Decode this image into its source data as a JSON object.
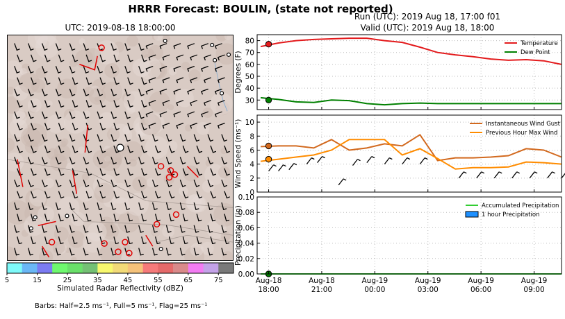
{
  "header": {
    "title": "HRRR Forecast: BOULIN, (state not reported)",
    "run": "Run (UTC): 2019 Aug 18, 17:00 f01",
    "valid": "Valid (UTC): 2019 Aug 18, 18:00"
  },
  "map": {
    "title": "UTC: 2019-08-18 18:00:00",
    "background_color": "#d9cbc4",
    "colorbar": {
      "label": "Simulated Radar Reflectivity (dBZ)",
      "ticks": [
        "5",
        "15",
        "25",
        "35",
        "45",
        "55",
        "65",
        "75"
      ],
      "colors": [
        "#7ef9f9",
        "#6ab7f5",
        "#7b7bf2",
        "#6ef86e",
        "#6adf6a",
        "#74c074",
        "#f8f86e",
        "#f2da77",
        "#f5c27a",
        "#f57a7a",
        "#e56a6a",
        "#d98a8a",
        "#f37cf3",
        "#c4a2e8",
        "#7a7a7a"
      ]
    },
    "barbs_note": "Barbs: Half=2.5 ms⁻¹, Full=5 ms⁻¹, Flag=25 ms⁻¹"
  },
  "chart_data": [
    {
      "type": "line",
      "ylabel": "Degrees (F)",
      "ylim": [
        22,
        85
      ],
      "yticks": [
        30,
        40,
        50,
        60,
        70,
        80
      ],
      "grid": true,
      "legend_position": "top-right",
      "series": [
        {
          "name": "Temperature",
          "color": "#e31a1c",
          "x": [
            0,
            1,
            2,
            3,
            4,
            5,
            6,
            7,
            8,
            9,
            10,
            11,
            12,
            13,
            14,
            15,
            16,
            17
          ],
          "values": [
            75,
            78,
            80,
            81,
            81.5,
            82,
            82,
            80,
            78.5,
            74.5,
            70,
            68,
            66.5,
            64.5,
            63.5,
            64,
            63,
            60
          ]
        },
        {
          "name": "Dew Point",
          "color": "#008000",
          "x": [
            0,
            1,
            2,
            3,
            4,
            5,
            6,
            7,
            8,
            9,
            10,
            11,
            12,
            13,
            14,
            15,
            16,
            17
          ],
          "values": [
            32,
            30.5,
            28.5,
            28,
            30,
            29.5,
            27,
            26,
            27,
            27.5,
            27,
            27,
            27,
            27,
            27,
            27,
            27,
            27
          ]
        }
      ],
      "markers": [
        {
          "x": 0.45,
          "y": 77,
          "color": "#e31a1c"
        },
        {
          "x": 0.45,
          "y": 30,
          "color": "#008000"
        }
      ]
    },
    {
      "type": "line",
      "ylabel": "Wind Speed (ms⁻¹)",
      "ylim": [
        0,
        11
      ],
      "yticks": [
        0,
        2,
        4,
        6,
        8,
        10
      ],
      "grid": true,
      "legend_position": "top-right",
      "series": [
        {
          "name": "Instantaneous Wind Gust",
          "color": "#d2691e",
          "x": [
            0,
            1,
            2,
            3,
            4,
            5,
            6,
            7,
            8,
            9,
            10,
            11,
            12,
            13,
            14,
            15,
            16,
            17
          ],
          "values": [
            6.5,
            6.6,
            6.6,
            6.3,
            7.5,
            6,
            6.3,
            6.9,
            6.6,
            8.2,
            4.5,
            4.9,
            4.9,
            5,
            5.2,
            6.2,
            6,
            5
          ]
        },
        {
          "name": "Previous Hour Max Wind",
          "color": "#ff8c00",
          "x": [
            0,
            1,
            2,
            3,
            4,
            5,
            6,
            7,
            8,
            9,
            10,
            11,
            12,
            13,
            14,
            15,
            16,
            17
          ],
          "values": [
            4.4,
            4.7,
            5,
            5.3,
            6,
            7.5,
            7.5,
            7.5,
            5.3,
            6.2,
            4.8,
            3.3,
            3.5,
            3.5,
            3.6,
            4.3,
            4.2,
            4
          ]
        }
      ],
      "markers": [
        {
          "x": 0.45,
          "y": 6.6,
          "color": "#d2691e"
        },
        {
          "x": 0.45,
          "y": 4.7,
          "color": "#ff8c00"
        }
      ]
    },
    {
      "type": "area",
      "ylabel": "Precipitation (in)",
      "ylim": [
        0,
        0.1
      ],
      "yticks": [
        "0.00",
        "0.02",
        "0.04",
        "0.06",
        "0.08",
        "0.10"
      ],
      "grid": true,
      "legend_position": "top-right",
      "series": [
        {
          "name": "Accumulated Precipitation",
          "color": "#32cd32",
          "x": [
            0,
            17
          ],
          "values": [
            0,
            0
          ]
        },
        {
          "name": "1 hour Precipitation",
          "color": "#1e90ff",
          "x": [],
          "values": []
        }
      ],
      "markers": [
        {
          "x": 0.45,
          "y": 0,
          "color": "#008000"
        }
      ]
    }
  ],
  "xaxis": {
    "ticks": [
      {
        "x": 0.45,
        "line1": "Aug-18",
        "line2": "18:00"
      },
      {
        "x": 3.45,
        "line1": "Aug-18",
        "line2": "21:00"
      },
      {
        "x": 6.45,
        "line1": "Aug-19",
        "line2": "00:00"
      },
      {
        "x": 9.45,
        "line1": "Aug-19",
        "line2": "03:00"
      },
      {
        "x": 12.45,
        "line1": "Aug-19",
        "line2": "06:00"
      },
      {
        "x": 15.45,
        "line1": "Aug-19",
        "line2": "09:00"
      }
    ],
    "xlim": [
      -0.2,
      17
    ]
  }
}
